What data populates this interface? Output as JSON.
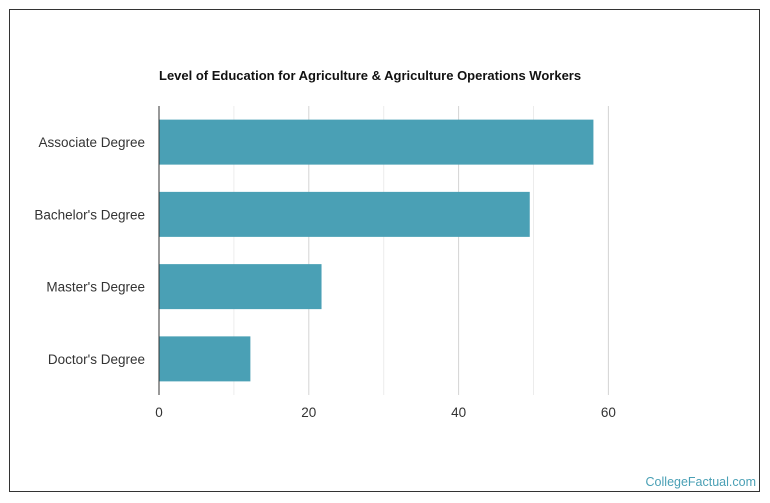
{
  "chart_data": {
    "type": "bar",
    "orientation": "horizontal",
    "title": "Level of Education for Agriculture & Agriculture Operations Workers",
    "categories": [
      "Associate Degree",
      "Bachelor's Degree",
      "Master's Degree",
      "Doctor's Degree"
    ],
    "values": [
      58,
      49.5,
      21.7,
      12.2
    ],
    "xlabel": "",
    "ylabel": "",
    "xlim": [
      0,
      80
    ],
    "xticks": [
      0,
      20,
      40,
      60
    ],
    "grid": true,
    "legend": "none",
    "bar_color": "#4aa0b5"
  },
  "credit": "CollegeFactual.com"
}
